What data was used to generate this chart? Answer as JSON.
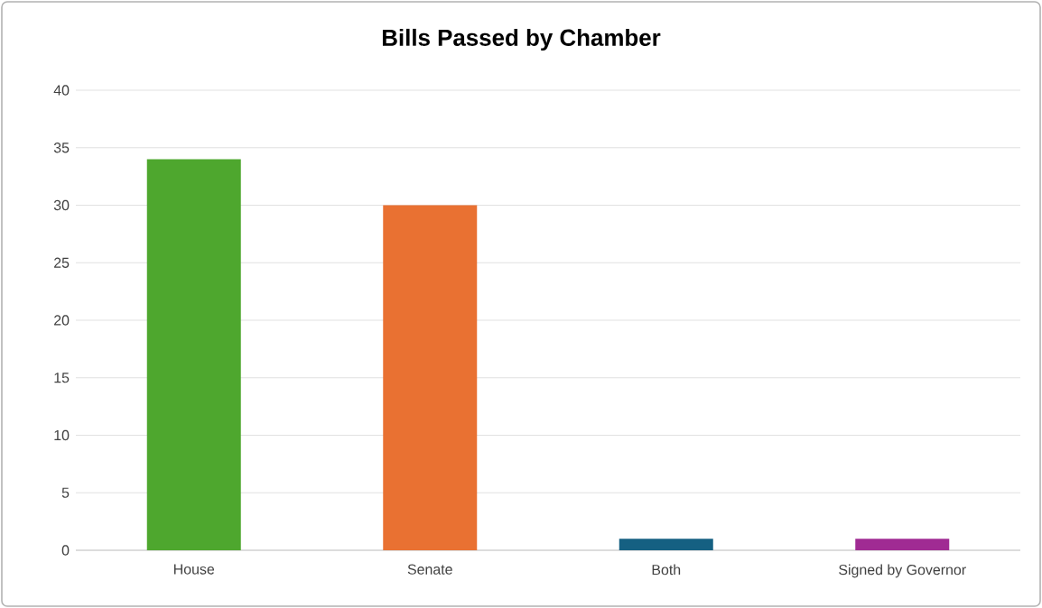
{
  "chart_data": {
    "type": "bar",
    "title": "Bills Passed by Chamber",
    "categories": [
      "House",
      "Senate",
      "Both",
      "Signed by Governor"
    ],
    "values": [
      34,
      30,
      1,
      1
    ],
    "colors": [
      "#4ea72e",
      "#e97132",
      "#156082",
      "#a02b93"
    ],
    "ylim": [
      0,
      40
    ],
    "yticks": [
      0,
      5,
      10,
      15,
      20,
      25,
      30,
      35,
      40
    ],
    "grid": "y"
  }
}
